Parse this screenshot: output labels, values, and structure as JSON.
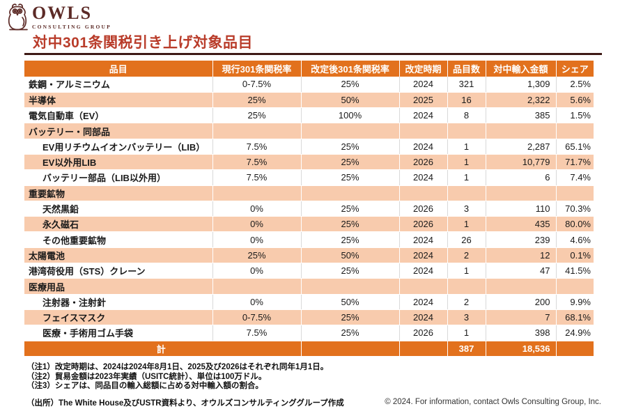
{
  "logo": {
    "name": "OWLS",
    "subtitle": "CONSULTING GROUP"
  },
  "page_title": "対中301条関税引き上げ対象品目",
  "colors": {
    "accent_orange": "#E2711D",
    "row_peach": "#F8CBAD",
    "title_red": "#B93C2A",
    "rule_dark": "#3E1A16",
    "logo_maroon": "#5C2A26"
  },
  "table": {
    "headers": [
      "品目",
      "現行301条関税率",
      "改定後301条関税率",
      "改定時期",
      "品目数",
      "対中輸入金額",
      "シェア"
    ],
    "rows": [
      {
        "item": "鉄鋼・アルミニウム",
        "current": "0-7.5%",
        "revised": "25%",
        "timing": "2024",
        "count": "321",
        "value": "1,309",
        "share": "2.5%",
        "indent": false,
        "shade": false,
        "category": false
      },
      {
        "item": "半導体",
        "current": "25%",
        "revised": "50%",
        "timing": "2025",
        "count": "16",
        "value": "2,322",
        "share": "5.6%",
        "indent": false,
        "shade": true,
        "category": false
      },
      {
        "item": "電気自動車（EV）",
        "current": "25%",
        "revised": "100%",
        "timing": "2024",
        "count": "8",
        "value": "385",
        "share": "1.5%",
        "indent": false,
        "shade": false,
        "category": false
      },
      {
        "item": "バッテリー・同部品",
        "current": "",
        "revised": "",
        "timing": "",
        "count": "",
        "value": "",
        "share": "",
        "indent": false,
        "shade": true,
        "category": true
      },
      {
        "item": "EV用リチウムイオンバッテリー（LIB）",
        "current": "7.5%",
        "revised": "25%",
        "timing": "2024",
        "count": "1",
        "value": "2,287",
        "share": "65.1%",
        "indent": true,
        "shade": false,
        "category": false
      },
      {
        "item": "EV以外用LIB",
        "current": "7.5%",
        "revised": "25%",
        "timing": "2026",
        "count": "1",
        "value": "10,779",
        "share": "71.7%",
        "indent": true,
        "shade": true,
        "category": false
      },
      {
        "item": "バッテリー部品（LIB以外用）",
        "current": "7.5%",
        "revised": "25%",
        "timing": "2024",
        "count": "1",
        "value": "6",
        "share": "7.4%",
        "indent": true,
        "shade": false,
        "category": false
      },
      {
        "item": "重要鉱物",
        "current": "",
        "revised": "",
        "timing": "",
        "count": "",
        "value": "",
        "share": "",
        "indent": false,
        "shade": true,
        "category": true
      },
      {
        "item": "天然黒鉛",
        "current": "0%",
        "revised": "25%",
        "timing": "2026",
        "count": "3",
        "value": "110",
        "share": "70.3%",
        "indent": true,
        "shade": false,
        "category": false
      },
      {
        "item": "永久磁石",
        "current": "0%",
        "revised": "25%",
        "timing": "2026",
        "count": "1",
        "value": "435",
        "share": "80.0%",
        "indent": true,
        "shade": true,
        "category": false
      },
      {
        "item": "その他重要鉱物",
        "current": "0%",
        "revised": "25%",
        "timing": "2024",
        "count": "26",
        "value": "239",
        "share": "4.6%",
        "indent": true,
        "shade": false,
        "category": false
      },
      {
        "item": "太陽電池",
        "current": "25%",
        "revised": "50%",
        "timing": "2024",
        "count": "2",
        "value": "12",
        "share": "0.1%",
        "indent": false,
        "shade": true,
        "category": false
      },
      {
        "item": "港湾荷役用（STS）クレーン",
        "current": "0%",
        "revised": "25%",
        "timing": "2024",
        "count": "1",
        "value": "47",
        "share": "41.5%",
        "indent": false,
        "shade": false,
        "category": false
      },
      {
        "item": "医療用品",
        "current": "",
        "revised": "",
        "timing": "",
        "count": "",
        "value": "",
        "share": "",
        "indent": false,
        "shade": true,
        "category": true
      },
      {
        "item": "注射器・注射針",
        "current": "0%",
        "revised": "50%",
        "timing": "2024",
        "count": "2",
        "value": "200",
        "share": "9.9%",
        "indent": true,
        "shade": false,
        "category": false
      },
      {
        "item": "フェイスマスク",
        "current": "0-7.5%",
        "revised": "25%",
        "timing": "2024",
        "count": "3",
        "value": "7",
        "share": "68.1%",
        "indent": true,
        "shade": true,
        "category": false
      },
      {
        "item": "医療・手術用ゴム手袋",
        "current": "7.5%",
        "revised": "25%",
        "timing": "2026",
        "count": "1",
        "value": "398",
        "share": "24.9%",
        "indent": true,
        "shade": false,
        "category": false
      }
    ],
    "total": {
      "label": "計",
      "revised": "",
      "timing": "",
      "count": "387",
      "value": "18,536",
      "share": ""
    }
  },
  "notes": [
    "（注1）改定時期は、2024は2024年8月1日、2025及び2026はそれぞれ同年1月1日。",
    "（注2）貿易金額は2023年実績（USITC統計）、単位は100万ドル。",
    "（注3）シェアは、同品目の輸入総額に占める対中輸入額の割合。"
  ],
  "source": "（出所）The White House及びUSTR資料より、オウルズコンサルティンググループ作成",
  "copyright": "© 2024. For information, contact Owls Consulting Group, Inc."
}
